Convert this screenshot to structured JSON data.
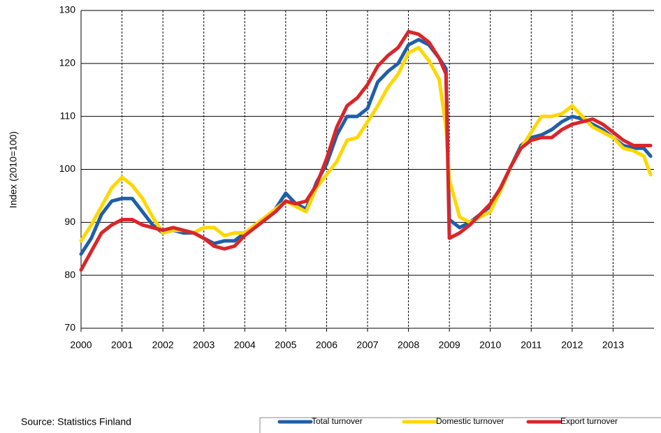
{
  "chart_data": {
    "type": "line",
    "y_label": "Index (2010=100)",
    "source": "Source: Statistics Finland",
    "x": [
      2000,
      2000.25,
      2000.5,
      2000.75,
      2001,
      2001.25,
      2001.5,
      2001.75,
      2002,
      2002.25,
      2002.5,
      2002.75,
      2003,
      2003.25,
      2003.5,
      2003.75,
      2004,
      2004.25,
      2004.5,
      2004.75,
      2005,
      2005.25,
      2005.5,
      2005.75,
      2006,
      2006.25,
      2006.5,
      2006.75,
      2007,
      2007.25,
      2007.5,
      2007.75,
      2008,
      2008.25,
      2008.5,
      2008.75,
      2008.917,
      2009,
      2009.25,
      2009.5,
      2009.75,
      2010,
      2010.25,
      2010.5,
      2010.75,
      2011,
      2011.25,
      2011.5,
      2011.75,
      2012,
      2012.25,
      2012.5,
      2012.75,
      2013,
      2013.25,
      2013.5,
      2013.75,
      2013.917
    ],
    "series": [
      {
        "name": "Total turnover",
        "color": "#1f5fa8",
        "values": [
          84,
          87,
          91.5,
          94,
          94.5,
          94.5,
          92,
          89.5,
          88,
          88.5,
          88,
          88,
          87,
          86,
          86.5,
          86.5,
          88,
          89,
          90.5,
          92.5,
          95.5,
          93.5,
          92.5,
          97.5,
          101,
          106.5,
          110,
          110,
          111.5,
          116.5,
          118.5,
          120,
          123.5,
          124.5,
          123.5,
          121,
          119,
          90.5,
          89,
          90,
          91.5,
          93,
          96.5,
          100.5,
          104.5,
          106,
          106.5,
          107.5,
          109,
          110,
          109.5,
          108.5,
          107.5,
          106,
          104.5,
          104,
          104,
          102.5
        ]
      },
      {
        "name": "Domestic turnover",
        "color": "#ffd700",
        "values": [
          86.5,
          89.5,
          93,
          96.5,
          98.5,
          97,
          94.5,
          91,
          88,
          88.5,
          88.5,
          88,
          89,
          89,
          87.5,
          88,
          88,
          89.5,
          91,
          92.5,
          94,
          93,
          92,
          96.5,
          99,
          101.5,
          105.5,
          106,
          109,
          112,
          115.5,
          118,
          122,
          123,
          120.5,
          117,
          108,
          98,
          91,
          90,
          91,
          92,
          96,
          100.5,
          104,
          107,
          110,
          110,
          110.5,
          112,
          110,
          108,
          107,
          106,
          104,
          103.5,
          102.5,
          99
        ]
      },
      {
        "name": "Export turnover",
        "color": "#d9262a",
        "values": [
          81,
          84.5,
          88,
          89.5,
          90.5,
          90.5,
          89.5,
          89,
          88.5,
          89,
          88.5,
          88,
          87,
          85.5,
          85,
          85.5,
          87.5,
          89,
          90.5,
          92,
          94,
          93.5,
          94,
          97,
          102,
          108,
          112,
          113.5,
          116,
          119.5,
          121.5,
          123,
          126,
          125.5,
          124,
          121,
          118,
          87,
          88,
          89.5,
          91.5,
          93.5,
          96.5,
          100.5,
          104,
          105.5,
          106,
          106,
          107.5,
          108.5,
          109,
          109.5,
          108.5,
          107,
          105.5,
          104.5,
          104.5,
          104.5
        ]
      }
    ],
    "xlim": [
      2000,
      2014
    ],
    "xticks": [
      2000,
      2001,
      2002,
      2003,
      2004,
      2005,
      2006,
      2007,
      2008,
      2009,
      2010,
      2011,
      2012,
      2013
    ],
    "ylim": [
      70,
      130
    ],
    "yticks": [
      70,
      80,
      90,
      100,
      110,
      120,
      130
    ],
    "grid": true,
    "legend": "bottom"
  }
}
